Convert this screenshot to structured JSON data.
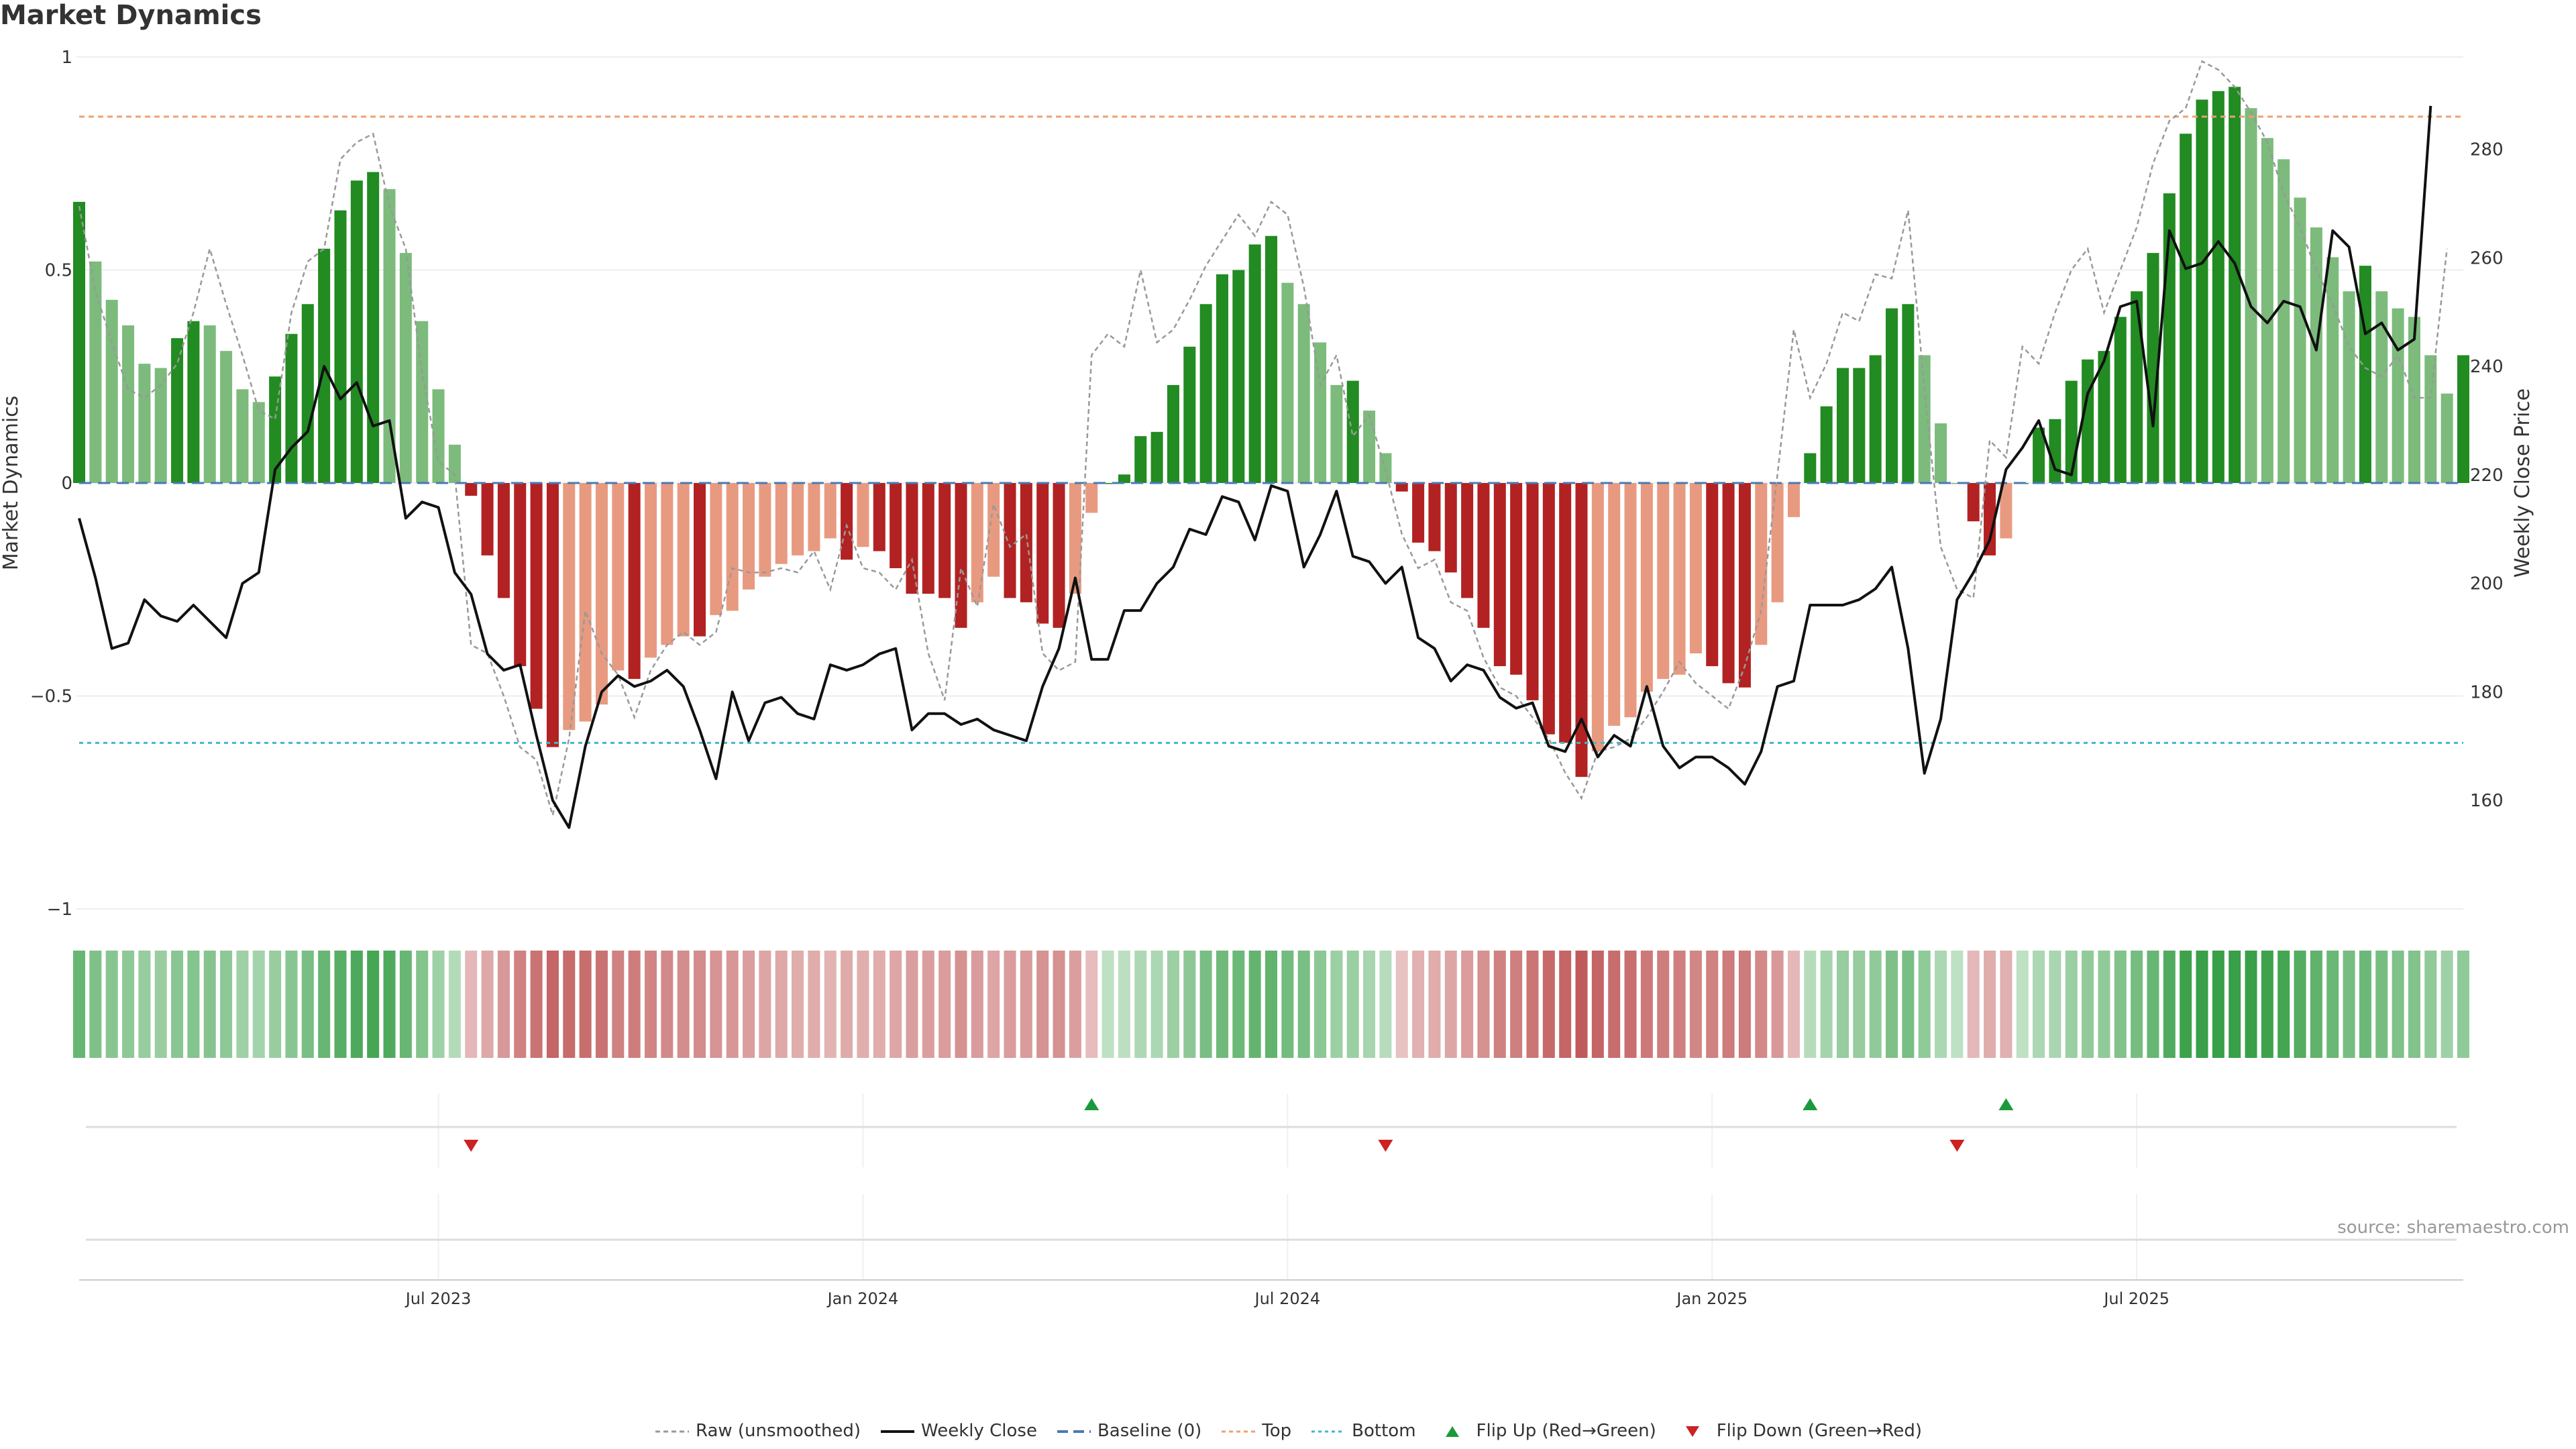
{
  "title": "Market Dynamics",
  "source": "source: sharemaestro.com",
  "colors": {
    "strong_green": "#228b22",
    "light_green": "#7cbb7c",
    "strong_red": "#b22222",
    "light_red": "#e89a80",
    "close_line": "#111111",
    "raw_line": "#999999",
    "baseline": "#4a79b5",
    "top_line": "#f0a070",
    "bottom_line": "#40b8c8",
    "flip_up": "#1a9a3a",
    "flip_down": "#cc2222"
  },
  "legend": [
    {
      "key": "raw",
      "label": "Raw (unsmoothed)"
    },
    {
      "key": "close",
      "label": "Weekly Close"
    },
    {
      "key": "baseline",
      "label": "Baseline (0)"
    },
    {
      "key": "top",
      "label": "Top"
    },
    {
      "key": "bottom",
      "label": "Bottom"
    },
    {
      "key": "flip_up",
      "label": "Flip Up (Red→Green)"
    },
    {
      "key": "flip_down",
      "label": "Flip Down (Green→Red)"
    }
  ],
  "chart_data": {
    "type": "bar",
    "title": "Market Dynamics",
    "ylabel_left": "Market Dynamics",
    "ylabel_right": "Weekly Close Price",
    "ylim_left": [
      -1,
      1
    ],
    "yticks_left": [
      1,
      0.5,
      0,
      -0.5,
      -1
    ],
    "ytick_labels_left": [
      "1",
      "0.5",
      "0",
      "−0.5",
      "−1"
    ],
    "ylim_right": [
      140,
      297
    ],
    "yticks_right": [
      160,
      180,
      200,
      220,
      240,
      260,
      280
    ],
    "ytick_labels_right": [
      "160",
      "180",
      "200",
      "220",
      "240",
      "260",
      "280"
    ],
    "start_week": "2023-01-06",
    "x_tick_labels": [
      "Jul 2023",
      "Jan 2024",
      "Jul 2024",
      "Jan 2025",
      "Jul 2025"
    ],
    "x_tick_weeks": [
      22,
      48,
      74,
      100,
      126
    ],
    "top_level": 0.86,
    "bottom_level": -0.61,
    "grid": true,
    "legend_position": "bottom",
    "flip_up_weeks": [
      62,
      106,
      118
    ],
    "flip_down_weeks": [
      24,
      80,
      115
    ],
    "series": [
      {
        "name": "Market Dynamics",
        "values": [
          0.66,
          0.52,
          0.43,
          0.37,
          0.28,
          0.27,
          0.34,
          0.38,
          0.37,
          0.31,
          0.22,
          0.19,
          0.25,
          0.35,
          0.42,
          0.55,
          0.64,
          0.71,
          0.73,
          0.69,
          0.54,
          0.38,
          0.22,
          0.09,
          -0.03,
          -0.17,
          -0.27,
          -0.43,
          -0.53,
          -0.62,
          -0.58,
          -0.56,
          -0.52,
          -0.44,
          -0.46,
          -0.41,
          -0.38,
          -0.36,
          -0.36,
          -0.31,
          -0.3,
          -0.25,
          -0.22,
          -0.19,
          -0.17,
          -0.16,
          -0.13,
          -0.18,
          -0.15,
          -0.16,
          -0.2,
          -0.26,
          -0.26,
          -0.27,
          -0.34,
          -0.28,
          -0.22,
          -0.27,
          -0.28,
          -0.33,
          -0.34,
          -0.26,
          -0.07,
          0.0,
          0.02,
          0.11,
          0.12,
          0.23,
          0.32,
          0.42,
          0.49,
          0.5,
          0.56,
          0.58,
          0.47,
          0.42,
          0.33,
          0.23,
          0.24,
          0.17,
          0.07,
          -0.02,
          -0.14,
          -0.16,
          -0.21,
          -0.27,
          -0.34,
          -0.43,
          -0.45,
          -0.51,
          -0.59,
          -0.61,
          -0.69,
          -0.63,
          -0.57,
          -0.55,
          -0.49,
          -0.46,
          -0.45,
          -0.4,
          -0.43,
          -0.47,
          -0.48,
          -0.38,
          -0.28,
          -0.08,
          0.07,
          0.18,
          0.27,
          0.27,
          0.3,
          0.41,
          0.42,
          0.3,
          0.14,
          0.0,
          -0.09,
          -0.17,
          -0.13,
          0.0,
          0.13,
          0.15,
          0.24,
          0.29,
          0.31,
          0.39,
          0.45,
          0.54,
          0.68,
          0.82,
          0.9,
          0.92,
          0.93,
          0.88,
          0.81,
          0.76,
          0.67,
          0.6,
          0.53,
          0.45,
          0.51,
          0.45,
          0.41,
          0.39,
          0.3,
          0.21,
          0.3
        ]
      },
      {
        "name": "Raw (unsmoothed)",
        "values": [
          0.65,
          0.45,
          0.33,
          0.22,
          0.2,
          0.23,
          0.28,
          0.4,
          0.55,
          0.42,
          0.3,
          0.17,
          0.15,
          0.4,
          0.52,
          0.55,
          0.76,
          0.8,
          0.82,
          0.65,
          0.55,
          0.26,
          0.05,
          0.02,
          -0.38,
          -0.4,
          -0.5,
          -0.62,
          -0.65,
          -0.78,
          -0.6,
          -0.3,
          -0.4,
          -0.45,
          -0.55,
          -0.44,
          -0.38,
          -0.35,
          -0.38,
          -0.35,
          -0.2,
          -0.21,
          -0.21,
          -0.2,
          -0.21,
          -0.16,
          -0.25,
          -0.1,
          -0.2,
          -0.21,
          -0.25,
          -0.18,
          -0.4,
          -0.51,
          -0.2,
          -0.29,
          -0.05,
          -0.15,
          -0.12,
          -0.4,
          -0.44,
          -0.42,
          0.3,
          0.35,
          0.32,
          0.5,
          0.33,
          0.36,
          0.43,
          0.51,
          0.57,
          0.63,
          0.58,
          0.66,
          0.63,
          0.46,
          0.23,
          0.3,
          0.11,
          0.16,
          0.03,
          -0.12,
          -0.2,
          -0.18,
          -0.28,
          -0.3,
          -0.41,
          -0.48,
          -0.5,
          -0.55,
          -0.6,
          -0.68,
          -0.74,
          -0.63,
          -0.62,
          -0.6,
          -0.55,
          -0.49,
          -0.42,
          -0.47,
          -0.5,
          -0.53,
          -0.43,
          -0.3,
          0.02,
          0.36,
          0.2,
          0.28,
          0.4,
          0.38,
          0.49,
          0.48,
          0.64,
          0.22,
          -0.15,
          -0.25,
          -0.27,
          0.1,
          0.06,
          0.32,
          0.28,
          0.4,
          0.5,
          0.55,
          0.4,
          0.5,
          0.6,
          0.75,
          0.85,
          0.88,
          0.99,
          0.97,
          0.93,
          0.87,
          0.8,
          0.68,
          0.6,
          0.5,
          0.42,
          0.32,
          0.27,
          0.25,
          0.3,
          0.2,
          0.2,
          0.55
        ]
      },
      {
        "name": "Weekly Close",
        "values": [
          212,
          201,
          188,
          189,
          197,
          194,
          193,
          196,
          193,
          190,
          200,
          202,
          221,
          225,
          228,
          240,
          234,
          237,
          229,
          230,
          212,
          215,
          214,
          202,
          198,
          187,
          184,
          185,
          172,
          160,
          155,
          170,
          180,
          183,
          181,
          182,
          184,
          181,
          173,
          164,
          180,
          171,
          178,
          179,
          176,
          175,
          185,
          184,
          185,
          187,
          188,
          173,
          176,
          176,
          174,
          175,
          173,
          172,
          171,
          181,
          188,
          201,
          186,
          186,
          195,
          195,
          200,
          203,
          210,
          209,
          216,
          215,
          208,
          218,
          217,
          203,
          209,
          217,
          205,
          204,
          200,
          203,
          190,
          188,
          182,
          185,
          184,
          179,
          177,
          178,
          170,
          169,
          175,
          168,
          172,
          170,
          181,
          170,
          166,
          168,
          168,
          166,
          163,
          169,
          181,
          182,
          196,
          196,
          196,
          197,
          199,
          203,
          188,
          165,
          175,
          197,
          202,
          208,
          221,
          225,
          230,
          221,
          220,
          235,
          241,
          251,
          252,
          229,
          265,
          258,
          259,
          263,
          259,
          251,
          248,
          252,
          251,
          243,
          265,
          262,
          246,
          248,
          243,
          245,
          288
        ]
      }
    ],
    "heatstrip_alpha": [
      0.7,
      0.55,
      0.5,
      0.45,
      0.4,
      0.39,
      0.48,
      0.52,
      0.51,
      0.45,
      0.35,
      0.32,
      0.38,
      0.5,
      0.58,
      0.7,
      0.8,
      0.87,
      0.9,
      0.86,
      0.7,
      0.52,
      0.35,
      0.22,
      0.22,
      0.32,
      0.42,
      0.58,
      0.68,
      0.78,
      0.74,
      0.72,
      0.68,
      0.59,
      0.61,
      0.56,
      0.53,
      0.51,
      0.51,
      0.45,
      0.44,
      0.38,
      0.35,
      0.32,
      0.3,
      0.29,
      0.25,
      0.31,
      0.28,
      0.29,
      0.33,
      0.39,
      0.39,
      0.4,
      0.48,
      0.41,
      0.35,
      0.4,
      0.41,
      0.46,
      0.48,
      0.39,
      0.19,
      0.15,
      0.16,
      0.25,
      0.26,
      0.36,
      0.46,
      0.58,
      0.65,
      0.66,
      0.72,
      0.74,
      0.62,
      0.58,
      0.47,
      0.36,
      0.37,
      0.3,
      0.2,
      0.14,
      0.27,
      0.29,
      0.34,
      0.4,
      0.48,
      0.58,
      0.6,
      0.66,
      0.75,
      0.77,
      0.85,
      0.79,
      0.72,
      0.71,
      0.64,
      0.61,
      0.6,
      0.55,
      0.58,
      0.62,
      0.63,
      0.53,
      0.42,
      0.21,
      0.2,
      0.31,
      0.4,
      0.4,
      0.44,
      0.56,
      0.58,
      0.44,
      0.27,
      0.15,
      0.22,
      0.3,
      0.26,
      0.15,
      0.26,
      0.28,
      0.37,
      0.42,
      0.44,
      0.53,
      0.6,
      0.7,
      0.84,
      0.96,
      1.0,
      1.0,
      1.0,
      1.0,
      0.96,
      0.92,
      0.82,
      0.75,
      0.68,
      0.6,
      0.66,
      0.6,
      0.55,
      0.53,
      0.44,
      0.35,
      0.44
    ]
  }
}
